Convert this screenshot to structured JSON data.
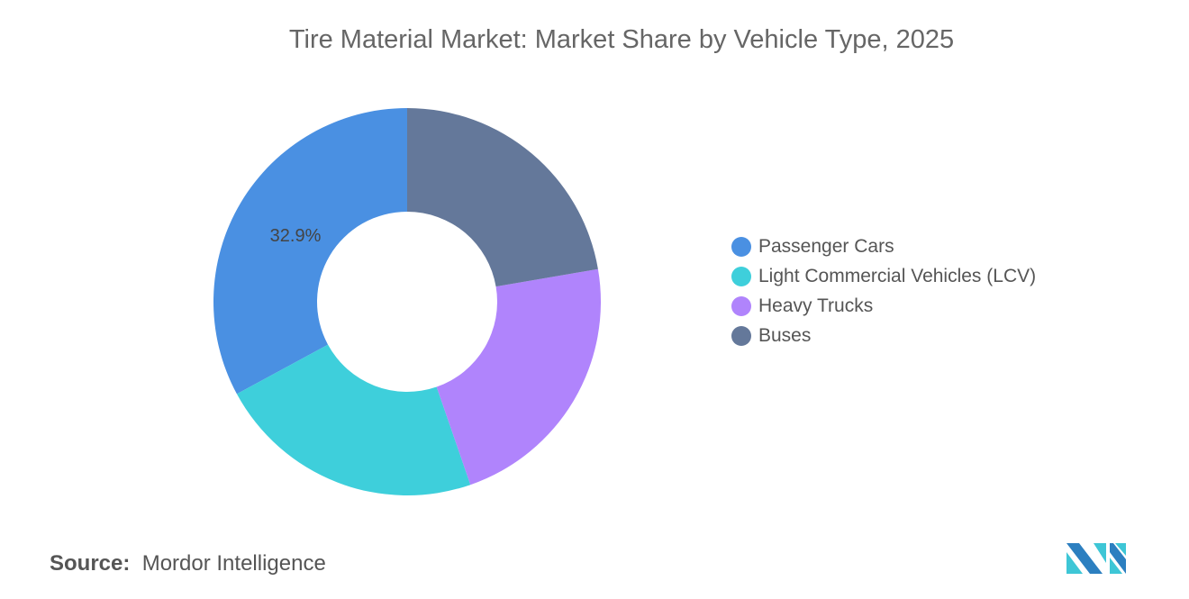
{
  "title": "Tire Material Market: Market Share by Vehicle Type, 2025",
  "chart_data": {
    "type": "pie",
    "variant": "donut",
    "title": "Tire Material Market: Market Share by Vehicle Type, 2025",
    "categories": [
      "Passenger Cars",
      "Light Commercial Vehicles (LCV)",
      "Heavy Trucks",
      "Buses"
    ],
    "values": [
      32.9,
      22.4,
      22.4,
      22.3
    ],
    "unit": "%",
    "colors": [
      "#4a90e2",
      "#3ecfdb",
      "#b084fc",
      "#64789a"
    ],
    "data_labels": [
      "32.9%"
    ],
    "legend_position": "right"
  },
  "source_label": "Source:",
  "source_value": "Mordor Intelligence",
  "logo_text": "Mordor Intelligence"
}
